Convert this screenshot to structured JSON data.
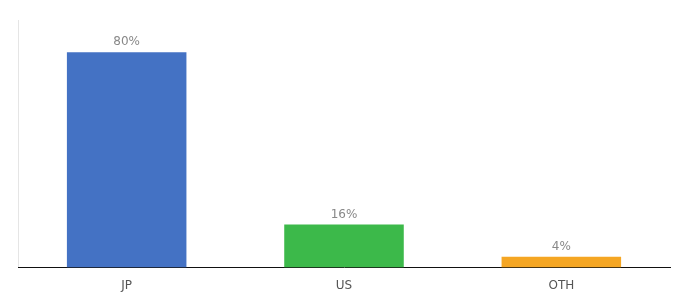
{
  "chart_data": {
    "type": "bar",
    "categories": [
      "JP",
      "US",
      "OTH"
    ],
    "values": [
      80,
      16,
      4
    ],
    "value_labels": [
      "80%",
      "16%",
      "4%"
    ],
    "colors": [
      "#4472c4",
      "#3cb94a",
      "#f5a623"
    ],
    "ylim": [
      0,
      92
    ],
    "grid": false,
    "data_labels": true,
    "tick_labels": "x"
  }
}
